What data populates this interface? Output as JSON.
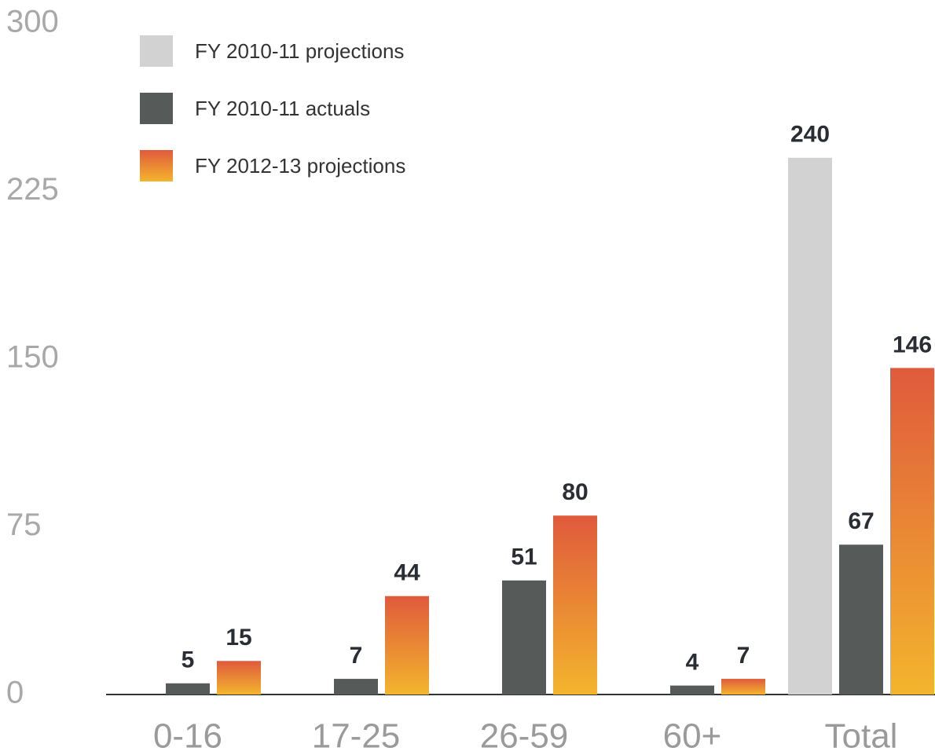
{
  "chart_data": {
    "type": "bar",
    "categories": [
      "0-16",
      "17-25",
      "26-59",
      "60+",
      "Total"
    ],
    "series": [
      {
        "name": "FY 2010-11 projections",
        "color": "#d2d2d2",
        "values": [
          null,
          null,
          null,
          null,
          240
        ]
      },
      {
        "name": "FY 2010-11 actuals",
        "color": "#565b59",
        "values": [
          5,
          7,
          51,
          4,
          67
        ]
      },
      {
        "name": "FY 2012-13 projections",
        "color": "#e05a3c",
        "values": [
          15,
          44,
          80,
          7,
          146
        ]
      }
    ],
    "ylim": [
      0,
      300
    ],
    "yticks": [
      0,
      75,
      150,
      225,
      300
    ],
    "grid": false,
    "legend": "upper left"
  }
}
